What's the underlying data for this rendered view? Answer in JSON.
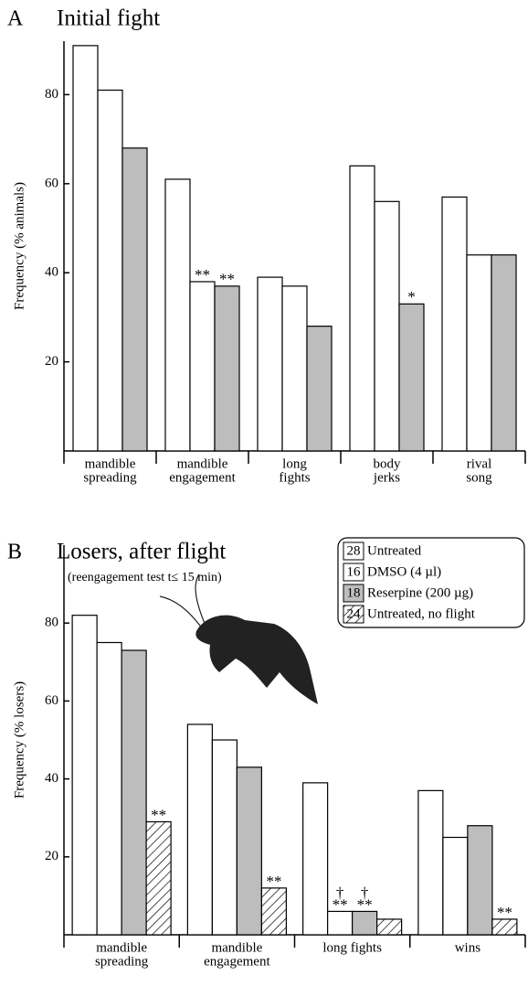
{
  "chart_data": [
    {
      "type": "bar",
      "panel": "A",
      "title": "Initial fight",
      "ylabel": "Frequency (% animals)",
      "categories": [
        [
          "mandible",
          "spreading"
        ],
        [
          "mandible",
          "engagement"
        ],
        [
          "long",
          "fights"
        ],
        [
          "body",
          "jerks"
        ],
        [
          "rival",
          "song"
        ]
      ],
      "series": [
        {
          "color": "#ffffff",
          "values": [
            91,
            61,
            39,
            64,
            57
          ],
          "significance": [
            null,
            null,
            null,
            null,
            null
          ]
        },
        {
          "color": "#ffffff",
          "values": [
            81,
            38,
            37,
            56,
            44
          ],
          "significance": [
            null,
            [
              "**"
            ],
            null,
            null,
            null
          ]
        },
        {
          "color": "#bdbdbd",
          "values": [
            68,
            37,
            28,
            33,
            44
          ],
          "significance": [
            null,
            [
              "**"
            ],
            null,
            [
              "*"
            ],
            null
          ]
        }
      ],
      "ylim": [
        0,
        92
      ],
      "yticks": [
        20,
        40,
        60,
        80
      ],
      "grid": false
    },
    {
      "type": "bar",
      "panel": "B",
      "title": "Losers, after flight",
      "subtitle": "(reengagement test t≤ 15 min)",
      "ylabel": "Frequency (% losers)",
      "categories": [
        [
          "mandible",
          "spreading"
        ],
        [
          "mandible",
          "engagement"
        ],
        [
          "long fights"
        ],
        [
          "wins"
        ]
      ],
      "series": [
        {
          "name": "Untreated",
          "n": 28,
          "color": "#ffffff",
          "values": [
            82,
            54,
            39,
            37
          ],
          "significance": [
            null,
            null,
            null,
            null
          ]
        },
        {
          "name": "DMSO (4 µl)",
          "n": 16,
          "color": "#ffffff",
          "values": [
            75,
            50,
            6,
            25
          ],
          "significance": [
            null,
            null,
            [
              "†",
              "**"
            ],
            null
          ]
        },
        {
          "name": "Reserpine (200 µg)",
          "n": 18,
          "color": "#bdbdbd",
          "values": [
            73,
            43,
            6,
            28
          ],
          "significance": [
            null,
            null,
            [
              "†",
              "**"
            ],
            null
          ]
        },
        {
          "name": "Untreated, no flight",
          "n": 24,
          "color": "#ffffff",
          "hatch": true,
          "values": [
            29,
            12,
            4,
            4
          ],
          "significance": [
            [
              "**"
            ],
            [
              "**"
            ],
            null,
            [
              "**"
            ]
          ]
        }
      ],
      "ylim": [
        0,
        100
      ],
      "yticks": [
        20,
        40,
        60,
        80
      ],
      "grid": false,
      "legend": "upper right"
    }
  ]
}
